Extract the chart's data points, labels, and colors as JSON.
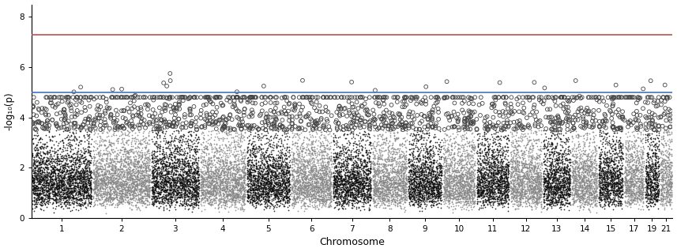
{
  "chromosomes": [
    1,
    2,
    3,
    4,
    5,
    6,
    7,
    8,
    9,
    10,
    11,
    12,
    13,
    14,
    15,
    17,
    19,
    21
  ],
  "chrom_labels": [
    "1",
    "2",
    "3",
    "4",
    "5",
    "6",
    "7",
    "8",
    "9",
    "10",
    "11",
    "12",
    "13",
    "14",
    "15",
    "17",
    "19",
    "21"
  ],
  "chrom_sizes": [
    250,
    240,
    200,
    190,
    180,
    170,
    160,
    145,
    140,
    135,
    135,
    133,
    115,
    107,
    102,
    81,
    59,
    48
  ],
  "gwas_line": 7.3,
  "suggestive_line": 5.0,
  "gwas_line_color": "#c0504d",
  "suggestive_line_color": "#4472c4",
  "color_odd": "#111111",
  "color_even": "#888888",
  "point_size": 1.5,
  "open_circle_size": 12,
  "open_circle_lw": 0.6,
  "background_color": "#ffffff",
  "plot_bg_color": "#ffffff",
  "xlabel": "Chromosome",
  "ylabel": "-log₁₀(p)",
  "ylim": [
    0,
    8.5
  ],
  "yticks": [
    0,
    2,
    4,
    6,
    8
  ],
  "figsize": [
    8.57,
    3.19
  ],
  "dpi": 100,
  "seed": 42,
  "n_snps_per_mb": 10,
  "title": ""
}
